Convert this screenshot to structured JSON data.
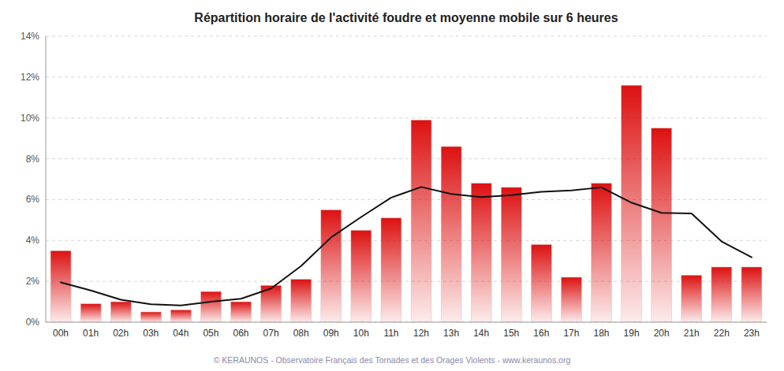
{
  "chart_data": {
    "type": "bar",
    "title": "Répartition horaire de l'activité foudre et moyenne mobile sur 6 heures",
    "annotations": [
      "© KERAUNOS - Observatoire Français des Tornades et des Orages Violents - www.keraunos.org"
    ],
    "categories": [
      "00h",
      "01h",
      "02h",
      "03h",
      "04h",
      "05h",
      "06h",
      "07h",
      "08h",
      "09h",
      "10h",
      "11h",
      "12h",
      "13h",
      "14h",
      "15h",
      "16h",
      "17h",
      "18h",
      "19h",
      "20h",
      "21h",
      "22h",
      "23h"
    ],
    "series": [
      {
        "type": "bar",
        "color": "#dd1111",
        "values": [
          0.035,
          0.009,
          0.01,
          0.005,
          0.006,
          0.015,
          0.01,
          0.018,
          0.021,
          0.055,
          0.045,
          0.051,
          0.099,
          0.086,
          0.068,
          0.066,
          0.038,
          0.022,
          0.068,
          0.116,
          0.095,
          0.023,
          0.027,
          0.027
        ]
      },
      {
        "type": "line",
        "color": "#111111",
        "values": [
          0.0195,
          0.0155,
          0.011,
          0.0088,
          0.0082,
          0.01,
          0.0115,
          0.0165,
          0.0275,
          0.0415,
          0.0515,
          0.061,
          0.0662,
          0.0628,
          0.0612,
          0.0622,
          0.0638,
          0.0645,
          0.066,
          0.0585,
          0.0535,
          0.0532,
          0.0395,
          0.0318
        ]
      }
    ],
    "ylim": [
      0,
      0.14
    ],
    "yticks": [
      {
        "value": 0.0,
        "label": "0%"
      },
      {
        "value": 0.02,
        "label": "2%"
      },
      {
        "value": 0.04,
        "label": "4%"
      },
      {
        "value": 0.06,
        "label": "6%"
      },
      {
        "value": 0.08,
        "label": "8%"
      },
      {
        "value": 0.1,
        "label": "10%"
      },
      {
        "value": 0.12,
        "label": "12%"
      },
      {
        "value": 0.14,
        "label": "14%"
      }
    ],
    "grid": true
  }
}
